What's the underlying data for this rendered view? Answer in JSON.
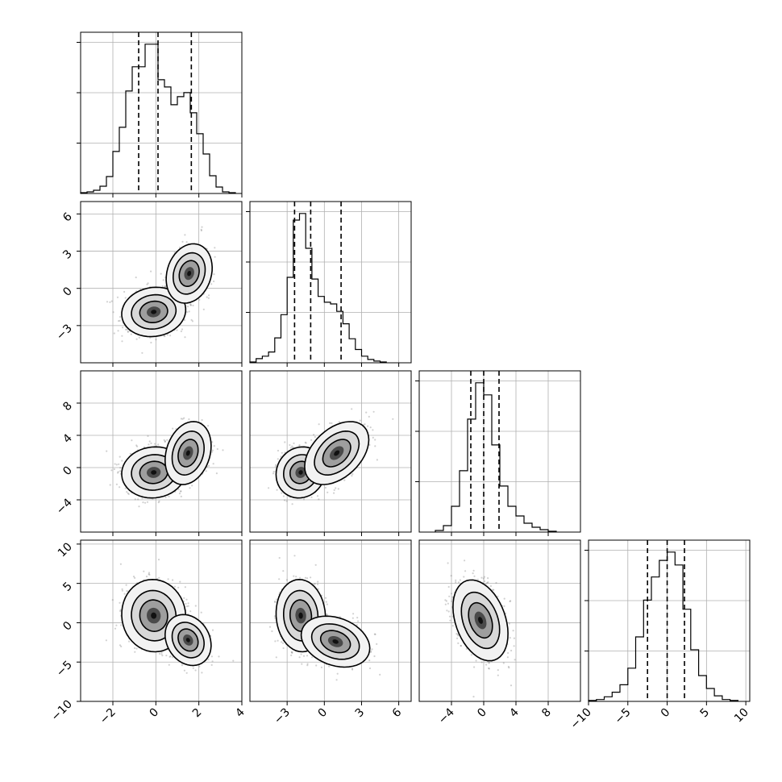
{
  "chart_data": {
    "type": "corner",
    "grid": true,
    "parameters": [
      {
        "name": "",
        "range": [
          -3.5,
          4
        ],
        "ticks": [
          -2,
          0,
          2,
          4
        ],
        "tick_labels": [
          "−2",
          "0",
          "2",
          "4"
        ],
        "quantiles": [
          -0.8,
          0.1,
          1.65
        ]
      },
      {
        "name": "",
        "range": [
          -6,
          7
        ],
        "ticks": [
          -3,
          0,
          3,
          6
        ],
        "tick_labels": [
          "−3",
          "0",
          "3",
          "6"
        ],
        "quantiles": [
          -2.4,
          -1.1,
          1.35
        ]
      },
      {
        "name": "",
        "range": [
          -8,
          12
        ],
        "ticks": [
          -4,
          0,
          4,
          8
        ],
        "tick_labels": [
          "−4",
          "0",
          "4",
          "8"
        ],
        "quantiles": [
          -1.6,
          0.0,
          1.9
        ]
      },
      {
        "name": "",
        "range": [
          -10,
          10.5
        ],
        "ticks": [
          -10,
          -5,
          0,
          5,
          10
        ],
        "tick_labels": [
          "−10",
          "−5",
          "0",
          "5",
          "10"
        ],
        "quantiles": [
          -2.5,
          0.0,
          2.2
        ]
      }
    ],
    "histograms": [
      {
        "param": 0,
        "bins": [
          [
            -3.5,
            -3.2,
            1
          ],
          [
            -3.2,
            -2.9,
            2
          ],
          [
            -2.9,
            -2.6,
            4
          ],
          [
            -2.6,
            -2.3,
            9
          ],
          [
            -2.3,
            -2.0,
            21
          ],
          [
            -2.0,
            -1.7,
            52
          ],
          [
            -1.7,
            -1.4,
            82
          ],
          [
            -1.4,
            -1.1,
            127
          ],
          [
            -1.1,
            -0.8,
            157
          ],
          [
            -0.8,
            -0.5,
            157
          ],
          [
            -0.5,
            -0.2,
            185
          ],
          [
            -0.2,
            0.1,
            185
          ],
          [
            0.1,
            0.4,
            141
          ],
          [
            0.4,
            0.7,
            132
          ],
          [
            0.7,
            1.0,
            110
          ],
          [
            1.0,
            1.3,
            120
          ],
          [
            1.3,
            1.6,
            125
          ],
          [
            1.6,
            1.9,
            100
          ],
          [
            1.9,
            2.2,
            74
          ],
          [
            2.2,
            2.5,
            49
          ],
          [
            2.5,
            2.8,
            22
          ],
          [
            2.8,
            3.1,
            8
          ],
          [
            3.1,
            3.4,
            2
          ],
          [
            3.4,
            3.7,
            1
          ]
        ]
      },
      {
        "param": 1,
        "bins": [
          [
            -6.0,
            -5.5,
            1
          ],
          [
            -5.5,
            -5.0,
            5
          ],
          [
            -5.0,
            -4.5,
            8
          ],
          [
            -4.5,
            -4.0,
            13
          ],
          [
            -4.0,
            -3.5,
            30
          ],
          [
            -3.5,
            -3.0,
            58
          ],
          [
            -3.0,
            -2.5,
            103
          ],
          [
            -2.5,
            -2.0,
            172
          ],
          [
            -2.0,
            -1.5,
            180
          ],
          [
            -1.5,
            -1.0,
            138
          ],
          [
            -1.0,
            -0.5,
            101
          ],
          [
            -0.5,
            0.0,
            80
          ],
          [
            0.0,
            0.5,
            73
          ],
          [
            0.5,
            1.0,
            71
          ],
          [
            1.0,
            1.5,
            62
          ],
          [
            1.5,
            2.0,
            47
          ],
          [
            2.0,
            2.5,
            29
          ],
          [
            2.5,
            3.0,
            16
          ],
          [
            3.0,
            3.5,
            8
          ],
          [
            3.5,
            4.0,
            4
          ],
          [
            4.0,
            4.5,
            2
          ],
          [
            4.5,
            5.0,
            1
          ]
        ]
      },
      {
        "param": 2,
        "bins": [
          [
            -6.0,
            -5.0,
            2
          ],
          [
            -5.0,
            -4.0,
            8
          ],
          [
            -4.0,
            -3.0,
            32
          ],
          [
            -3.0,
            -2.0,
            76
          ],
          [
            -2.0,
            -1.0,
            140
          ],
          [
            -1.0,
            0.0,
            185
          ],
          [
            0.0,
            1.0,
            170
          ],
          [
            1.0,
            2.0,
            108
          ],
          [
            2.0,
            3.0,
            57
          ],
          [
            3.0,
            4.0,
            32
          ],
          [
            4.0,
            5.0,
            20
          ],
          [
            5.0,
            6.0,
            11
          ],
          [
            6.0,
            7.0,
            6
          ],
          [
            7.0,
            8.0,
            3
          ],
          [
            8.0,
            9.0,
            1
          ]
        ]
      },
      {
        "param": 3,
        "bins": [
          [
            -10.0,
            -9.0,
            1
          ],
          [
            -9.0,
            -8.0,
            2
          ],
          [
            -8.0,
            -7.0,
            5
          ],
          [
            -7.0,
            -6.0,
            10
          ],
          [
            -6.0,
            -5.0,
            18
          ],
          [
            -5.0,
            -4.0,
            36
          ],
          [
            -4.0,
            -3.0,
            70
          ],
          [
            -3.0,
            -2.0,
            110
          ],
          [
            -2.0,
            -1.0,
            135
          ],
          [
            -1.0,
            0.0,
            153
          ],
          [
            0.0,
            1.0,
            162
          ],
          [
            1.0,
            2.0,
            148
          ],
          [
            2.0,
            3.0,
            100
          ],
          [
            3.0,
            4.0,
            56
          ],
          [
            4.0,
            5.0,
            28
          ],
          [
            5.0,
            6.0,
            14
          ],
          [
            6.0,
            7.0,
            6
          ],
          [
            7.0,
            8.0,
            2
          ],
          [
            8.0,
            9.0,
            1
          ]
        ]
      }
    ],
    "pairs": [
      {
        "x": 0,
        "y": 1,
        "components": [
          {
            "weight": 0.68,
            "mean": [
              -0.1,
              -1.9
            ],
            "cov": [
              [
                0.42,
                0.05
              ],
              [
                0.05,
                0.75
              ]
            ]
          },
          {
            "weight": 0.32,
            "mean": [
              1.55,
              1.2
            ],
            "cov": [
              [
                0.24,
                0.1
              ],
              [
                0.1,
                1.2
              ]
            ]
          }
        ]
      },
      {
        "x": 0,
        "y": 2,
        "components": [
          {
            "weight": 0.68,
            "mean": [
              -0.1,
              -0.6
            ],
            "cov": [
              [
                0.42,
                0.05
              ],
              [
                0.05,
                1.9
              ]
            ]
          },
          {
            "weight": 0.32,
            "mean": [
              1.5,
              1.8
            ],
            "cov": [
              [
                0.24,
                0.2
              ],
              [
                0.2,
                3.2
              ]
            ]
          }
        ]
      },
      {
        "x": 1,
        "y": 2,
        "components": [
          {
            "weight": 0.68,
            "mean": [
              -1.9,
              -0.6
            ],
            "cov": [
              [
                0.75,
                0.1
              ],
              [
                0.1,
                1.9
              ]
            ]
          },
          {
            "weight": 0.32,
            "mean": [
              1.0,
              1.8
            ],
            "cov": [
              [
                1.4,
                0.9
              ],
              [
                0.9,
                3.2
              ]
            ]
          }
        ]
      },
      {
        "x": 0,
        "y": 3,
        "components": [
          {
            "weight": 0.68,
            "mean": [
              -0.1,
              0.9
            ],
            "cov": [
              [
                0.42,
                -0.05
              ],
              [
                -0.05,
                4.0
              ]
            ]
          },
          {
            "weight": 0.32,
            "mean": [
              1.5,
              -2.2
            ],
            "cov": [
              [
                0.24,
                -0.15
              ],
              [
                -0.15,
                2.2
              ]
            ]
          }
        ]
      },
      {
        "x": 1,
        "y": 3,
        "components": [
          {
            "weight": 0.68,
            "mean": [
              -1.9,
              0.9
            ],
            "cov": [
              [
                0.75,
                -0.1
              ],
              [
                -0.1,
                4.0
              ]
            ]
          },
          {
            "weight": 0.32,
            "mean": [
              0.9,
              -2.4
            ],
            "cov": [
              [
                1.6,
                -0.5
              ],
              [
                -0.5,
                2.2
              ]
            ]
          }
        ]
      },
      {
        "x": 2,
        "y": 3,
        "components": [
          {
            "weight": 1.0,
            "mean": [
              -0.4,
              0.3
            ],
            "cov": [
              [
                2.2,
                -1.1
              ],
              [
                -1.1,
                5.0
              ]
            ]
          }
        ]
      }
    ]
  }
}
